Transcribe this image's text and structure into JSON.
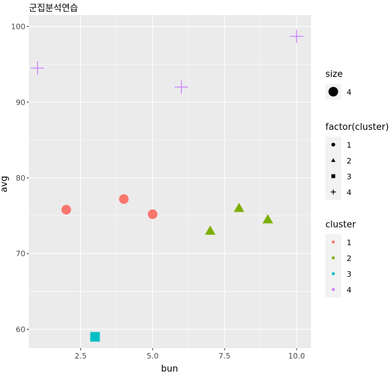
{
  "chart_data": {
    "type": "scatter",
    "title": "군집분석연습",
    "xlabel": "bun",
    "ylabel": "avg",
    "xlim": [
      0.7,
      10.5
    ],
    "ylim": [
      57.5,
      101.5
    ],
    "xticks": [
      "2.5",
      "5.0",
      "7.5",
      "10.0"
    ],
    "yticks": [
      "60",
      "70",
      "80",
      "90",
      "100"
    ],
    "grid": true,
    "points": [
      {
        "x": 1,
        "y": 94.5,
        "cluster": "4"
      },
      {
        "x": 2,
        "y": 75.8,
        "cluster": "1"
      },
      {
        "x": 3,
        "y": 59.0,
        "cluster": "3"
      },
      {
        "x": 4,
        "y": 77.2,
        "cluster": "1"
      },
      {
        "x": 5,
        "y": 75.2,
        "cluster": "1"
      },
      {
        "x": 6,
        "y": 92.0,
        "cluster": "4"
      },
      {
        "x": 7,
        "y": 73.0,
        "cluster": "2"
      },
      {
        "x": 8,
        "y": 76.0,
        "cluster": "2"
      },
      {
        "x": 9,
        "y": 74.5,
        "cluster": "2"
      },
      {
        "x": 10,
        "y": 98.7,
        "cluster": "4"
      }
    ],
    "cluster_colors": {
      "1": "#F8766D",
      "2": "#7CAE00",
      "3": "#00BFC4",
      "4": "#C77CFF"
    },
    "cluster_shapes": {
      "1": "circle",
      "2": "triangle",
      "3": "square",
      "4": "plus"
    },
    "legend_position": "right",
    "legends": [
      {
        "title": "size",
        "entries": [
          {
            "label": "4",
            "shape": "circle",
            "color": "#000000",
            "big": true
          }
        ]
      },
      {
        "title": "factor(cluster)",
        "entries": [
          {
            "label": "1",
            "shape": "circle",
            "color": "#000000"
          },
          {
            "label": "2",
            "shape": "triangle",
            "color": "#000000"
          },
          {
            "label": "3",
            "shape": "square",
            "color": "#000000"
          },
          {
            "label": "4",
            "shape": "plus",
            "color": "#000000"
          }
        ]
      },
      {
        "title": "cluster",
        "entries": [
          {
            "label": "1",
            "shape": "dot",
            "color": "#F8766D"
          },
          {
            "label": "2",
            "shape": "dot",
            "color": "#7CAE00"
          },
          {
            "label": "3",
            "shape": "dot",
            "color": "#00BFC4"
          },
          {
            "label": "4",
            "shape": "dot",
            "color": "#C77CFF"
          }
        ]
      }
    ]
  }
}
